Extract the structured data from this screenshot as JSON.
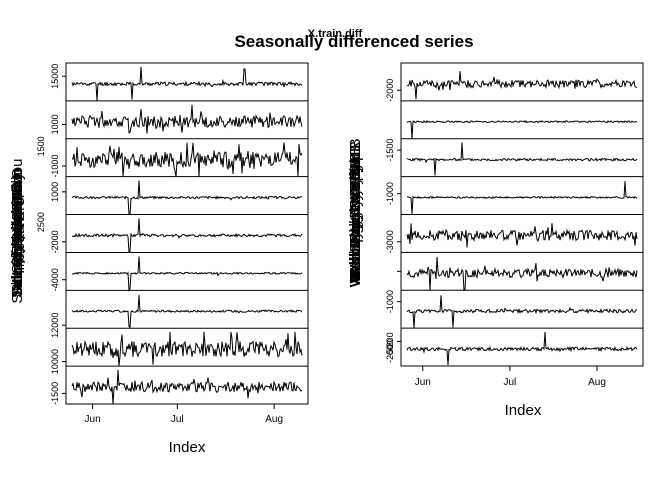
{
  "header": {
    "title": "Seasonally differenced series",
    "overlay_title": "X.train.diff"
  },
  "chart_data": {
    "type": "line",
    "title": "Seasonally differenced series",
    "subtitle": "X.train.diff",
    "x_label": "Index",
    "x_ticks": [
      "Jun",
      "Jul",
      "Aug"
    ],
    "panels": [
      {
        "id": "left",
        "rows": [
          {
            "y_ticks": [
              {
                "label": "15000",
                "pos": 0.35
              }
            ],
            "range": [
              -1500,
              2500
            ],
            "spikes": [
              0.26,
              0.3,
              0.11,
              0.75
            ],
            "noise": 0.1,
            "seed": 11,
            "y_sublabel": ""
          },
          {
            "y_ticks": [
              {
                "label": "1000",
                "pos": 0.62
              }
            ],
            "range": [
              -2000,
              2000
            ],
            "spikes": [
              0.25,
              0.3,
              0.48,
              0.52
            ],
            "noise": 0.35,
            "seed": 12,
            "y_sublabel": ""
          },
          {
            "y_ticks": [
              {
                "label": "-1000",
                "pos": 0.72
              }
            ],
            "range": [
              -2000,
              3000
            ],
            "spikes": [
              0.45,
              0.5,
              0.55
            ],
            "noise": 0.45,
            "seed": 13,
            "y_sublabel": "1500"
          },
          {
            "y_ticks": [
              {
                "label": "1000",
                "pos": 0.4
              }
            ],
            "range": [
              -1500,
              1500
            ],
            "spikes": [
              0.25,
              0.29
            ],
            "noise": 0.07,
            "seed": 14,
            "y_sublabel": ""
          },
          {
            "y_ticks": [
              {
                "label": "-2000",
                "pos": 0.72
              }
            ],
            "range": [
              -3000,
              2000
            ],
            "spikes": [
              0.25,
              0.29
            ],
            "noise": 0.08,
            "seed": 15,
            "y_sublabel": "2500"
          },
          {
            "y_ticks": [
              {
                "label": "-4000",
                "pos": 0.72
              }
            ],
            "range": [
              -5000,
              2000
            ],
            "spikes": [
              0.25,
              0.29
            ],
            "noise": 0.05,
            "seed": 16,
            "y_sublabel": ""
          },
          {
            "y_ticks": [
              {
                "label": "12000",
                "pos": 0.92
              }
            ],
            "range": [
              -2000,
              2000
            ],
            "spikes": [
              0.25,
              0.29
            ],
            "noise": 0.06,
            "seed": 17,
            "y_sublabel": ""
          },
          {
            "y_ticks": [
              {
                "label": "10000",
                "pos": 0.88
              }
            ],
            "range": [
              -1500,
              1500
            ],
            "spikes": [],
            "noise": 0.45,
            "seed": 18,
            "y_sublabel": ""
          },
          {
            "y_ticks": [
              {
                "label": "-1500",
                "pos": 0.72
              }
            ],
            "range": [
              -2000,
              1500
            ],
            "spikes": [
              0.18,
              0.2
            ],
            "noise": 0.3,
            "seed": 19,
            "y_sublabel": ""
          }
        ],
        "y_names": [
          "Fm.in.in",
          "Mean.Spd.Wind.in",
          "Salt.Spr.IDSOUT.Mou",
          "Sm.oval.ai.n.Rch.O",
          "Tmmin.Salt.OPIS.n",
          "Salt.Chnl.Sal.n.Bly",
          "Salt.Cont.VacSAirr",
          "Salt.Cty.Salt.n.Rm",
          "Runoff.Sea.mark"
        ],
        "y_names_overlay": [
          "Fe.Ht.Wt.C",
          "Tm.cou.C.Tl"
        ]
      },
      {
        "id": "right",
        "rows": [
          {
            "y_ticks": [
              {
                "label": "-2000",
                "pos": 0.72
              }
            ],
            "range": [
              -3000,
              1500
            ],
            "spikes": [
              0.04,
              0.23
            ],
            "noise": 0.22,
            "seed": 21,
            "y_sublabel": ""
          },
          {
            "y_ticks": [],
            "range": [
              -2000,
              500
            ],
            "spikes": [
              0.02
            ],
            "noise": 0.05,
            "seed": 22,
            "y_sublabel": ""
          },
          {
            "y_ticks": [
              {
                "label": "-1500",
                "pos": 0.3
              }
            ],
            "range": [
              -2000,
              3000
            ],
            "spikes": [
              0.12,
              0.24
            ],
            "noise": 0.07,
            "seed": 23,
            "y_sublabel": ""
          },
          {
            "y_ticks": [
              {
                "label": "-1000",
                "pos": 0.45
              }
            ],
            "range": [
              -2000,
              1500
            ],
            "spikes": [
              0.02,
              0.95
            ],
            "noise": 0.05,
            "seed": 24,
            "y_sublabel": ""
          },
          {
            "y_ticks": [
              {
                "label": "-3000",
                "pos": 0.72
              }
            ],
            "range": [
              -4000,
              1500
            ],
            "spikes": [
              0.48,
              0.63
            ],
            "noise": 0.3,
            "seed": 25,
            "y_sublabel": ""
          },
          {
            "y_ticks": [
              {
                "label": "",
                "pos": 0.5
              }
            ],
            "range": [
              -2500,
              2500
            ],
            "spikes": [
              0.1,
              0.13,
              0.25
            ],
            "noise": 0.25,
            "seed": 26,
            "y_sublabel": ""
          },
          {
            "y_ticks": [
              {
                "label": "-1000",
                "pos": 0.3
              }
            ],
            "range": [
              -2000,
              1500
            ],
            "spikes": [
              0.03,
              0.15,
              0.2
            ],
            "noise": 0.1,
            "seed": 27,
            "y_sublabel": ""
          },
          {
            "y_ticks": [
              {
                "label": "-200",
                "pos": 0.35
              }
            ],
            "range": [
              -300,
              200
            ],
            "spikes": [
              0.18,
              0.6
            ],
            "noise": 0.1,
            "seed": 28,
            "y_sublabel": ""
          }
        ],
        "y_ticks_extra": [
          "-200",
          "-500"
        ],
        "y_names": [
          "Web.Bdget.Mc.Ct.p.B",
          "Web.ReadMr.Cty.BL",
          "Web.Bdg.Cty.PitVL",
          "Web.Bdger.Dor.Pks.R",
          "Web.Dodge.Cty.BLL",
          "Web.Spa.Cty.ArpVkB",
          "Web.Cty.Brs.Bdge",
          "Web.Byts.Cty.Pl.BL"
        ]
      }
    ]
  }
}
